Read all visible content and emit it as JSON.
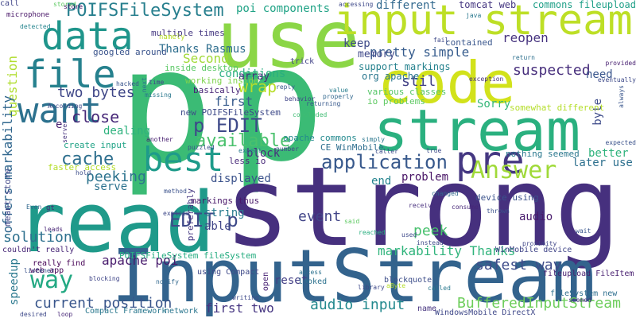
{
  "words": [
    {
      "text": "p",
      "color": "#3bbb75"
    },
    {
      "text": "p",
      "color": "#3bbb75"
    },
    {
      "text": "strong",
      "color": "#46307e"
    },
    {
      "text": "read",
      "color": "#1f9a8a"
    },
    {
      "text": "InputStream",
      "color": "#33638d"
    },
    {
      "text": "use",
      "color": "#8bd646"
    },
    {
      "text": "code",
      "color": "#d2e21b"
    },
    {
      "text": "stream",
      "color": "#2ab07f"
    },
    {
      "text": "input stream",
      "color": "#bddf26"
    },
    {
      "text": "data",
      "color": "#1f958b"
    },
    {
      "text": "file",
      "color": "#26818e"
    },
    {
      "text": "want",
      "color": "#2c718e"
    },
    {
      "text": "best",
      "color": "#1e9b8a"
    },
    {
      "text": "pre",
      "color": "#453882"
    },
    {
      "text": "Answer",
      "color": "#a0da39"
    },
    {
      "text": "application",
      "color": "#38598c"
    },
    {
      "text": "way",
      "color": "#23a983"
    },
    {
      "text": "POIFSFileSystem",
      "color": "#277f8e"
    },
    {
      "text": "EDIT p",
      "color": "#3e4a89"
    },
    {
      "text": "p EDIT",
      "color": "#3e4989"
    },
    {
      "text": "available",
      "color": "#4ac16d"
    },
    {
      "text": "cache",
      "color": "#2e6f8e"
    },
    {
      "text": "close",
      "color": "#482979"
    },
    {
      "text": "two bytes",
      "color": "#3f4788"
    },
    {
      "text": "event",
      "color": "#414487"
    },
    {
      "text": "audio input",
      "color": "#23898e"
    },
    {
      "text": "BufferedInputStream",
      "color": "#6ccd5a"
    },
    {
      "text": "safest way",
      "color": "#3e4c8a"
    },
    {
      "text": "current position",
      "color": "#39568c"
    },
    {
      "text": "solution",
      "color": "#2d708e"
    },
    {
      "text": "peek",
      "color": "#48c16e"
    },
    {
      "text": "apache poi",
      "color": "#481b6d"
    },
    {
      "text": "markability Thanks",
      "color": "#30b47c"
    },
    {
      "text": "Second",
      "color": "#a2da37"
    },
    {
      "text": "suspected",
      "color": "#472e7c"
    },
    {
      "text": "pretty simple",
      "color": "#365c8d"
    },
    {
      "text": "question",
      "color": "#b0dd2f"
    },
    {
      "text": "offers markability",
      "color": "#31678e"
    },
    {
      "text": "peeking",
      "color": "#2c738e"
    },
    {
      "text": "first",
      "color": "#375b8d"
    },
    {
      "text": "first two",
      "color": "#453581"
    },
    {
      "text": "wrap",
      "color": "#b8de29"
    },
    {
      "text": "stil",
      "color": "#424186"
    },
    {
      "text": "problem",
      "color": "#471365"
    },
    {
      "text": "reopen",
      "color": "#46337f"
    },
    {
      "text": "keep",
      "color": "#3e4a89"
    },
    {
      "text": "poi components",
      "color": "#20a386"
    },
    {
      "text": "different",
      "color": "#31688e"
    },
    {
      "text": "Thanks Rasmus",
      "color": "#2e6e8e"
    },
    {
      "text": "conditions",
      "color": "#28ae80"
    },
    {
      "text": "dealing",
      "color": "#2db27d"
    },
    {
      "text": "e",
      "color": "#481f70"
    },
    {
      "text": "end",
      "color": "#25848e"
    },
    {
      "text": "need",
      "color": "#39558c"
    },
    {
      "text": "byte",
      "color": "#3e4c8a"
    },
    {
      "text": "Sorry",
      "color": "#35b779"
    },
    {
      "text": "better",
      "color": "#2eb37c"
    },
    {
      "text": "later use",
      "color": "#2d708e"
    },
    {
      "text": "displayed",
      "color": "#3b528b"
    },
    {
      "text": "block",
      "color": "#472f7d"
    },
    {
      "text": "string",
      "color": "#287c8e"
    },
    {
      "text": "able",
      "color": "#404588"
    },
    {
      "text": "serve",
      "color": "#2c728e"
    },
    {
      "text": "reset",
      "color": "#433e85"
    },
    {
      "text": "audio",
      "color": "#481b6d"
    },
    {
      "text": "speedup",
      "color": "#2a788e"
    },
    {
      "text": "memory",
      "color": "#3f4889"
    },
    {
      "text": "array",
      "color": "#472d7b"
    },
    {
      "text": "commons fileupload",
      "color": "#1fa088"
    },
    {
      "text": "tomcat web",
      "color": "#453781"
    },
    {
      "text": "support markings",
      "color": "#26828e"
    },
    {
      "text": "org apache",
      "color": "#2a778e"
    },
    {
      "text": "various classes",
      "color": "#55c667"
    },
    {
      "text": "io problems",
      "color": "#5ec962"
    },
    {
      "text": "contained",
      "color": "#39568c"
    },
    {
      "text": "multiple times",
      "color": "#453781"
    },
    {
      "text": "googled around",
      "color": "#3a548c"
    },
    {
      "text": "inside desktop",
      "color": "#5ac864"
    },
    {
      "text": "working inside",
      "color": "#7fd34e"
    },
    {
      "text": "basically",
      "color": "#482576"
    },
    {
      "text": "new POIFSFileSystem",
      "color": "#3e4a89"
    },
    {
      "text": "create input",
      "color": "#20a386"
    },
    {
      "text": "less io",
      "color": "#482979"
    },
    {
      "text": "CE WinMobile",
      "color": "#2e6e8e"
    },
    {
      "text": "apache commons",
      "color": "#23898e"
    },
    {
      "text": "nothing seemed",
      "color": "#2a788e"
    },
    {
      "text": "device using",
      "color": "#3b528b"
    },
    {
      "text": "markings thus",
      "color": "#481769"
    },
    {
      "text": "preferably",
      "color": "#453882"
    },
    {
      "text": "somewhat different",
      "color": "#b5de2b"
    },
    {
      "text": "faster access",
      "color": "#b5de2b"
    },
    {
      "text": "meant store",
      "color": "#404688"
    },
    {
      "text": "couldn't really",
      "color": "#482878"
    },
    {
      "text": "really find",
      "color": "#440154"
    },
    {
      "text": "web app",
      "color": "#440154"
    },
    {
      "text": "POIFSFileSystem fileSystem",
      "color": "#27ad81"
    },
    {
      "text": "using Compact",
      "color": "#3e4989"
    },
    {
      "text": "Compact Framework",
      "color": "#2a788e"
    },
    {
      "text": "network",
      "color": "#2a768e"
    },
    {
      "text": "WindowsMobile DirectX",
      "color": "#3f4889"
    },
    {
      "text": "WinMobile device",
      "color": "#404588"
    },
    {
      "text": "fileupload FileItem",
      "color": "#481f70"
    },
    {
      "text": "fileSystem new",
      "color": "#2e6f8e"
    },
    {
      "text": "microphone",
      "color": "#481668"
    },
    {
      "text": "gt",
      "color": "#482374"
    },
    {
      "text": "looked",
      "color": "#2c728e"
    },
    {
      "text": "name",
      "color": "#46337f"
    },
    {
      "text": "open",
      "color": "#482173"
    },
    {
      "text": "blockquote",
      "color": "#3d4e8a"
    },
    {
      "text": "trick",
      "color": "#414287"
    },
    {
      "text": "namely",
      "color": "#b8de29"
    },
    {
      "text": "stored",
      "color": "#5ec962"
    },
    {
      "text": "accessing",
      "color": "#3e4989"
    },
    {
      "text": "store",
      "color": "#481467"
    },
    {
      "text": "detected",
      "color": "#25848e"
    },
    {
      "text": "java",
      "color": "#2a788e"
    },
    {
      "text": "fail",
      "color": "#3e4989"
    },
    {
      "text": "return",
      "color": "#2d708e"
    },
    {
      "text": "provided",
      "color": "#482071"
    },
    {
      "text": "exception",
      "color": "#472f7d"
    },
    {
      "text": "eventually",
      "color": "#3e4a89"
    },
    {
      "text": "hacked",
      "color": "#39558c"
    },
    {
      "text": "missing",
      "color": "#2a788e"
    },
    {
      "text": "returning",
      "color": "#38598c"
    },
    {
      "text": "behavior",
      "color": "#404588"
    },
    {
      "text": "value",
      "color": "#287d8e"
    },
    {
      "text": "properly",
      "color": "#31688e"
    },
    {
      "text": "always",
      "color": "#39568c"
    },
    {
      "text": "expected",
      "color": "#3b528b"
    },
    {
      "text": "server",
      "color": "#46327e"
    },
    {
      "text": "According",
      "color": "#3e4989"
    },
    {
      "text": "concluded",
      "color": "#3fbc73"
    },
    {
      "text": "another",
      "color": "#482071"
    },
    {
      "text": "puzzled",
      "color": "#3b528b"
    },
    {
      "text": "expect",
      "color": "#2a788e"
    },
    {
      "text": "number",
      "color": "#404688"
    },
    {
      "text": "true",
      "color": "#3e4a89"
    },
    {
      "text": "simply",
      "color": "#2a768e"
    },
    {
      "text": "caller",
      "color": "#3d4e8a"
    },
    {
      "text": "changed",
      "color": "#31688e"
    },
    {
      "text": "consume",
      "color": "#482878"
    },
    {
      "text": "thrown",
      "color": "#3b528b"
    },
    {
      "text": "received",
      "color": "#472f7d"
    },
    {
      "text": "proximity",
      "color": "#404688"
    },
    {
      "text": "wait",
      "color": "#39568c"
    },
    {
      "text": "used",
      "color": "#3e4989"
    },
    {
      "text": "reached",
      "color": "#29af7f"
    },
    {
      "text": "said",
      "color": "#5ec962"
    },
    {
      "text": "method",
      "color": "#3b528b"
    },
    {
      "text": "explain",
      "color": "#3e4989"
    },
    {
      "text": "leads",
      "color": "#482576"
    },
    {
      "text": "Even",
      "color": "#31688e"
    },
    {
      "text": "hold",
      "color": "#3d4e8a"
    },
    {
      "text": "time",
      "color": "#404588"
    },
    {
      "text": "next",
      "color": "#2c738e"
    },
    {
      "text": "reply",
      "color": "#38598c"
    },
    {
      "text": "instead",
      "color": "#3e4a89"
    },
    {
      "text": "called",
      "color": "#2a788e"
    },
    {
      "text": "aByte",
      "color": "#b5de2b"
    },
    {
      "text": "seemed",
      "color": "#472f7d"
    },
    {
      "text": "library",
      "color": "#3e4989"
    },
    {
      "text": "blocking",
      "color": "#404688"
    },
    {
      "text": "notify",
      "color": "#31688e"
    },
    {
      "text": "listener",
      "color": "#3b528b"
    },
    {
      "text": "access",
      "color": "#2c728e"
    },
    {
      "text": "desired",
      "color": "#3e4989"
    },
    {
      "text": "loop",
      "color": "#482878"
    },
    {
      "text": "writing",
      "color": "#3e4a89"
    },
    {
      "text": "call",
      "color": "#404588"
    }
  ]
}
